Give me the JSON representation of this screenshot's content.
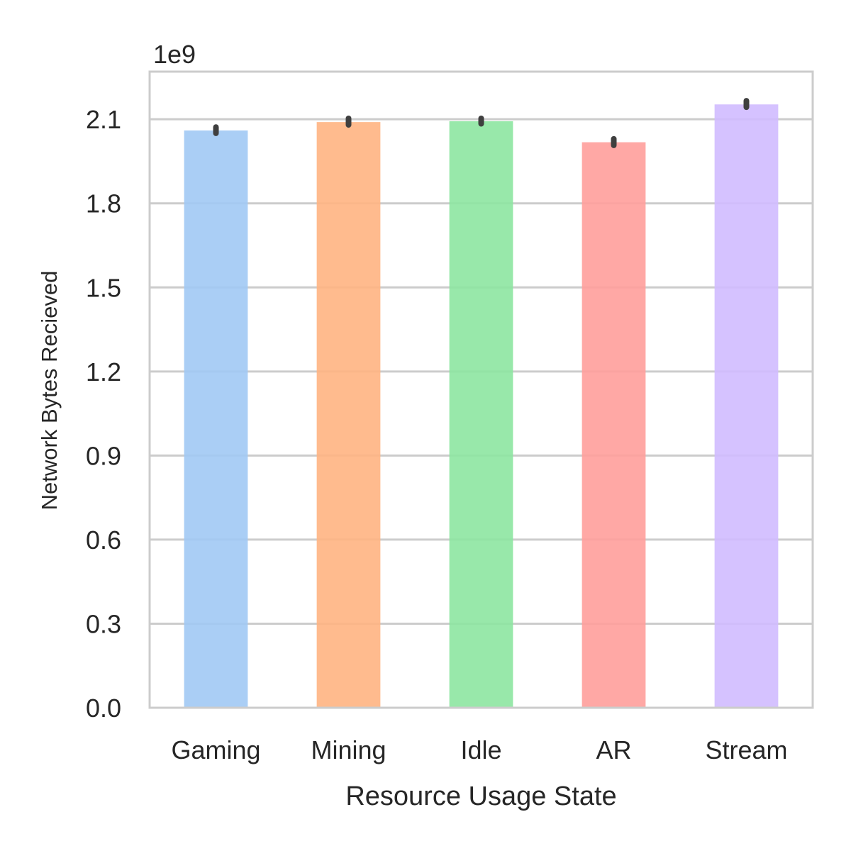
{
  "chart_data": {
    "type": "bar",
    "title": "",
    "xlabel": "Resource Usage State",
    "ylabel": "Network Bytes Recieved",
    "offset_text": "1e9",
    "scale": 1000000000,
    "categories": [
      "Gaming",
      "Mining",
      "Idle",
      "AR",
      "Stream"
    ],
    "values": [
      2060000000,
      2090000000,
      2093000000,
      2018000000,
      2153000000
    ],
    "error_bars": [
      [
        2050000000,
        2072000000
      ],
      [
        2080000000,
        2103000000
      ],
      [
        2084000000,
        2103000000
      ],
      [
        2007000000,
        2030000000
      ],
      [
        2143000000,
        2166000000
      ]
    ],
    "colors": [
      "#a1c9f4",
      "#ffb482",
      "#8de5a1",
      "#ff9f9b",
      "#d0bbff"
    ],
    "opacity": 0.9,
    "yticks": [
      "0.0",
      "0.3",
      "0.6",
      "0.9",
      "1.2",
      "1.5",
      "1.8",
      "2.1"
    ],
    "ylim": [
      0,
      2270000000
    ],
    "grid": "horizontal",
    "legend": "none"
  }
}
